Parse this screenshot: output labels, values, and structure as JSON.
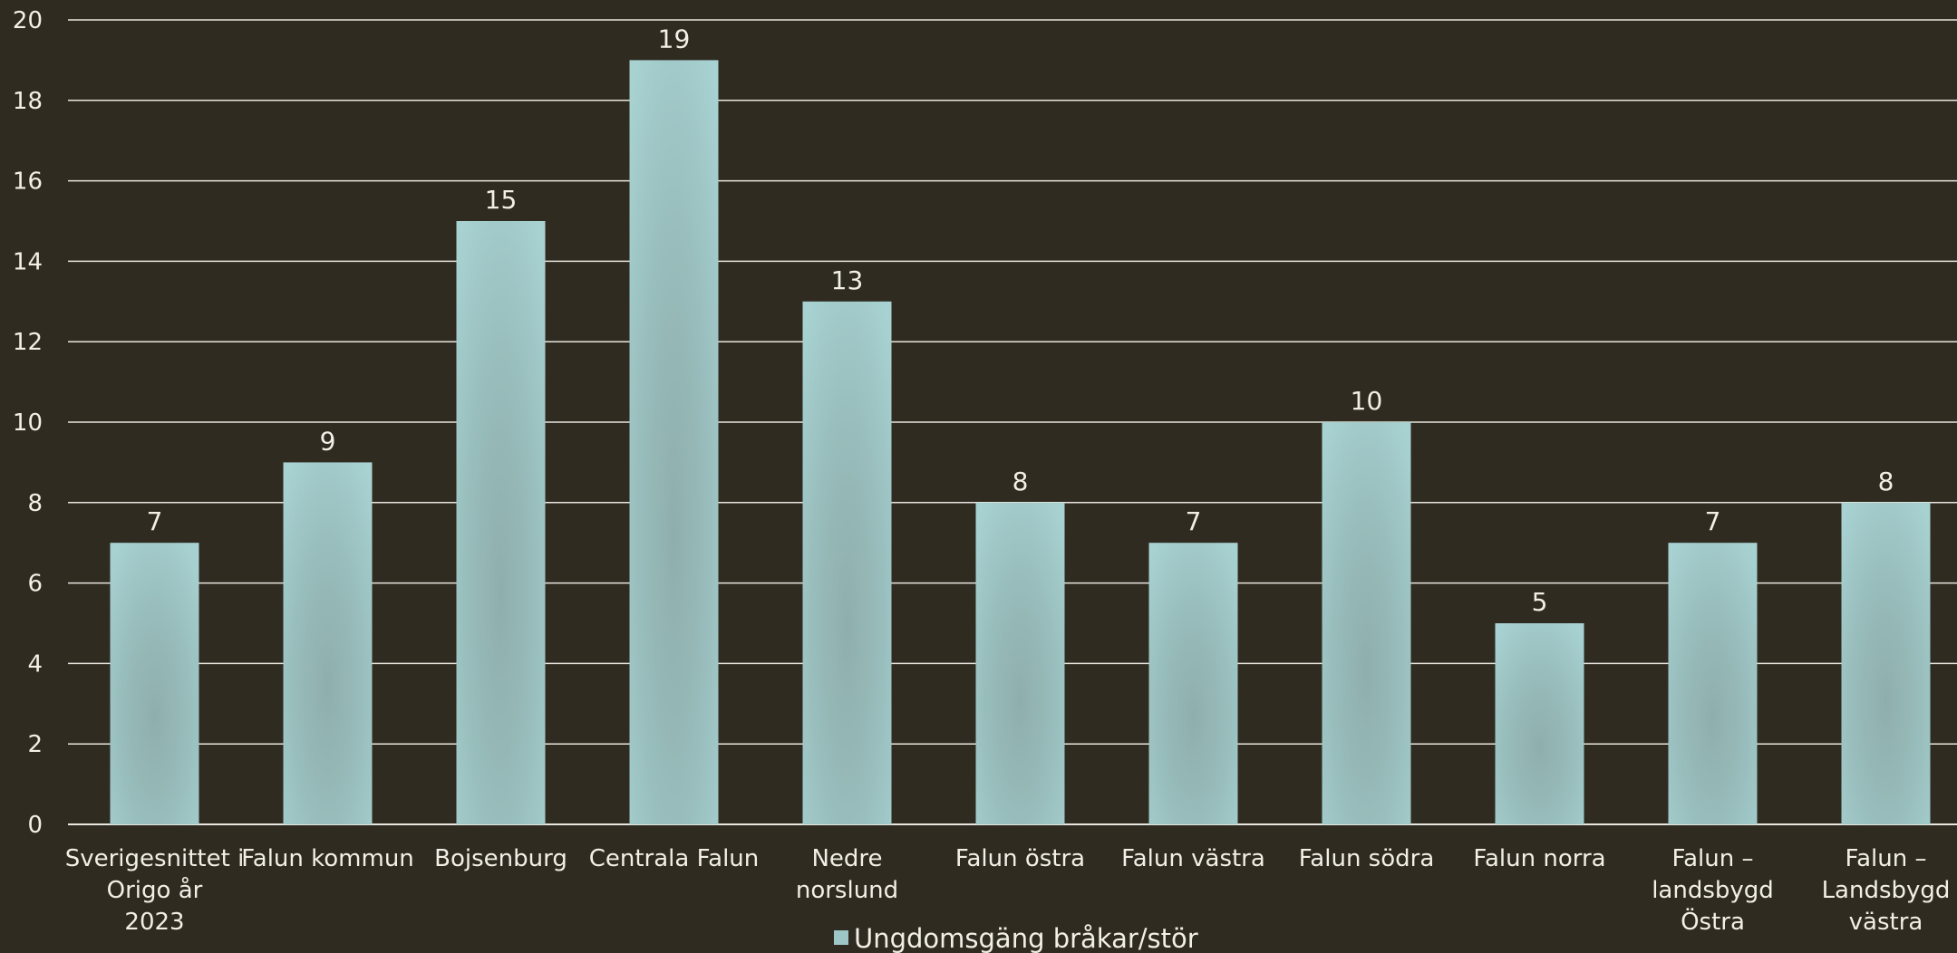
{
  "chart_data": {
    "type": "bar",
    "categories": [
      "Sverigesnittet i Origo år 2023",
      "Falun kommun",
      "Bojsenburg",
      "Centrala Falun",
      "Nedre norslund",
      "Falun östra",
      "Falun västra",
      "Falun södra",
      "Falun norra",
      "Falun – landsbygd Östra",
      "Falun – Landsbygd västra"
    ],
    "category_lines": [
      [
        "Sverigesnittet i",
        "Origo år",
        "2023"
      ],
      [
        "Falun kommun"
      ],
      [
        "Bojsenburg"
      ],
      [
        "Centrala Falun"
      ],
      [
        "Nedre",
        "norslund"
      ],
      [
        "Falun östra"
      ],
      [
        "Falun västra"
      ],
      [
        "Falun södra"
      ],
      [
        "Falun norra"
      ],
      [
        "Falun –",
        "landsbygd",
        "Östra"
      ],
      [
        "Falun –",
        "Landsbygd",
        "västra"
      ]
    ],
    "series": [
      {
        "name": "Ungdomsgäng bråkar/stör",
        "values": [
          7,
          9,
          15,
          19,
          13,
          8,
          7,
          10,
          5,
          7,
          8
        ]
      }
    ],
    "ylim": [
      0,
      20
    ],
    "yticks": [
      0,
      2,
      4,
      6,
      8,
      10,
      12,
      14,
      16,
      18,
      20
    ],
    "data_labels": true,
    "grid": true,
    "legend": "bottom-center",
    "xlabel": "",
    "ylabel": "",
    "title": ""
  },
  "colors": {
    "background": "#2f2b21",
    "bar_light": "#a6d0d0",
    "bar_dark": "#8eaeac",
    "gridline": "#e8e6df",
    "text": "#f2efe6"
  }
}
